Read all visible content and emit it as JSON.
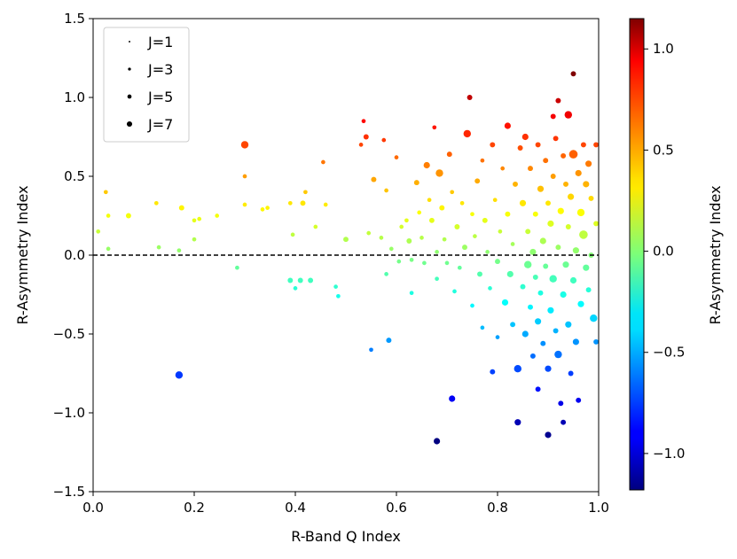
{
  "chart_data": {
    "type": "scatter",
    "title": "",
    "xlabel": "R-Band Q Index",
    "ylabel": "R-Asymmetry Index",
    "xlim": [
      0.0,
      1.0
    ],
    "ylim": [
      -1.5,
      1.5
    ],
    "xticks": [
      "0.0",
      "0.2",
      "0.4",
      "0.6",
      "0.8",
      "1.0"
    ],
    "yticks": [
      "1.5",
      "1.0",
      "0.5",
      "0.0",
      "-0.5",
      "-1.0",
      "-1.5"
    ],
    "reference_line": {
      "y": 0.0,
      "style": "dashed",
      "color": "#000000"
    },
    "colorbar": {
      "label": "R-Asymmetry Index",
      "range": [
        -1.18,
        1.15
      ],
      "ticks": [
        "1.0",
        "0.5",
        "0.0",
        "-0.5",
        "-1.0"
      ],
      "colormap": "jet"
    },
    "legend": {
      "position": "top-left",
      "entries": [
        {
          "label": "J=1",
          "j": 1
        },
        {
          "label": "J=3",
          "j": 3
        },
        {
          "label": "J=5",
          "j": 5
        },
        {
          "label": "J=7",
          "j": 7
        }
      ]
    },
    "points": [
      {
        "x": 0.01,
        "y": 0.15,
        "j": 2
      },
      {
        "x": 0.025,
        "y": 0.4,
        "j": 2
      },
      {
        "x": 0.03,
        "y": 0.25,
        "j": 2
      },
      {
        "x": 0.03,
        "y": 0.04,
        "j": 2
      },
      {
        "x": 0.07,
        "y": 0.25,
        "j": 3
      },
      {
        "x": 0.125,
        "y": 0.33,
        "j": 2
      },
      {
        "x": 0.13,
        "y": 0.05,
        "j": 2
      },
      {
        "x": 0.17,
        "y": 0.03,
        "j": 2
      },
      {
        "x": 0.17,
        "y": -0.76,
        "j": 5
      },
      {
        "x": 0.175,
        "y": 0.3,
        "j": 3
      },
      {
        "x": 0.2,
        "y": 0.22,
        "j": 2
      },
      {
        "x": 0.2,
        "y": 0.1,
        "j": 2
      },
      {
        "x": 0.21,
        "y": 0.23,
        "j": 2
      },
      {
        "x": 0.245,
        "y": 0.25,
        "j": 2
      },
      {
        "x": 0.285,
        "y": -0.08,
        "j": 2
      },
      {
        "x": 0.3,
        "y": 0.7,
        "j": 5
      },
      {
        "x": 0.3,
        "y": 0.5,
        "j": 2
      },
      {
        "x": 0.3,
        "y": 0.32,
        "j": 2
      },
      {
        "x": 0.335,
        "y": 0.29,
        "j": 2
      },
      {
        "x": 0.345,
        "y": 0.3,
        "j": 2
      },
      {
        "x": 0.39,
        "y": 0.33,
        "j": 2
      },
      {
        "x": 0.39,
        "y": -0.16,
        "j": 3
      },
      {
        "x": 0.395,
        "y": 0.13,
        "j": 2
      },
      {
        "x": 0.4,
        "y": -0.21,
        "j": 2
      },
      {
        "x": 0.41,
        "y": -0.16,
        "j": 3
      },
      {
        "x": 0.415,
        "y": 0.33,
        "j": 3
      },
      {
        "x": 0.42,
        "y": 0.4,
        "j": 2
      },
      {
        "x": 0.43,
        "y": -0.16,
        "j": 3
      },
      {
        "x": 0.44,
        "y": 0.18,
        "j": 2
      },
      {
        "x": 0.455,
        "y": 0.59,
        "j": 2
      },
      {
        "x": 0.46,
        "y": 0.32,
        "j": 2
      },
      {
        "x": 0.48,
        "y": -0.2,
        "j": 2
      },
      {
        "x": 0.485,
        "y": -0.26,
        "j": 2
      },
      {
        "x": 0.5,
        "y": 0.1,
        "j": 3
      },
      {
        "x": 0.53,
        "y": 0.7,
        "j": 2
      },
      {
        "x": 0.535,
        "y": 0.85,
        "j": 2
      },
      {
        "x": 0.54,
        "y": 0.75,
        "j": 3
      },
      {
        "x": 0.545,
        "y": 0.14,
        "j": 2
      },
      {
        "x": 0.55,
        "y": -0.6,
        "j": 2
      },
      {
        "x": 0.555,
        "y": 0.48,
        "j": 3
      },
      {
        "x": 0.57,
        "y": 0.11,
        "j": 2
      },
      {
        "x": 0.575,
        "y": 0.73,
        "j": 2
      },
      {
        "x": 0.58,
        "y": 0.41,
        "j": 2
      },
      {
        "x": 0.58,
        "y": -0.12,
        "j": 2
      },
      {
        "x": 0.585,
        "y": -0.54,
        "j": 3
      },
      {
        "x": 0.59,
        "y": 0.04,
        "j": 2
      },
      {
        "x": 0.6,
        "y": 0.62,
        "j": 2
      },
      {
        "x": 0.605,
        "y": -0.04,
        "j": 2
      },
      {
        "x": 0.61,
        "y": 0.18,
        "j": 2
      },
      {
        "x": 0.62,
        "y": 0.22,
        "j": 2
      },
      {
        "x": 0.625,
        "y": 0.09,
        "j": 3
      },
      {
        "x": 0.63,
        "y": -0.03,
        "j": 2
      },
      {
        "x": 0.63,
        "y": -0.24,
        "j": 2
      },
      {
        "x": 0.64,
        "y": 0.46,
        "j": 3
      },
      {
        "x": 0.645,
        "y": 0.27,
        "j": 2
      },
      {
        "x": 0.65,
        "y": 0.11,
        "j": 2
      },
      {
        "x": 0.655,
        "y": -0.05,
        "j": 2
      },
      {
        "x": 0.66,
        "y": 0.57,
        "j": 4
      },
      {
        "x": 0.665,
        "y": 0.35,
        "j": 2
      },
      {
        "x": 0.67,
        "y": 0.22,
        "j": 3
      },
      {
        "x": 0.675,
        "y": 0.81,
        "j": 2
      },
      {
        "x": 0.68,
        "y": 0.02,
        "j": 2
      },
      {
        "x": 0.68,
        "y": -0.15,
        "j": 2
      },
      {
        "x": 0.68,
        "y": -1.18,
        "j": 4
      },
      {
        "x": 0.685,
        "y": 0.52,
        "j": 5
      },
      {
        "x": 0.69,
        "y": 0.3,
        "j": 3
      },
      {
        "x": 0.695,
        "y": 0.1,
        "j": 2
      },
      {
        "x": 0.7,
        "y": -0.05,
        "j": 2
      },
      {
        "x": 0.705,
        "y": 0.64,
        "j": 3
      },
      {
        "x": 0.71,
        "y": -0.91,
        "j": 4
      },
      {
        "x": 0.71,
        "y": 0.4,
        "j": 2
      },
      {
        "x": 0.715,
        "y": -0.23,
        "j": 2
      },
      {
        "x": 0.72,
        "y": 0.18,
        "j": 3
      },
      {
        "x": 0.725,
        "y": -0.08,
        "j": 2
      },
      {
        "x": 0.73,
        "y": 0.33,
        "j": 2
      },
      {
        "x": 0.735,
        "y": 0.05,
        "j": 3
      },
      {
        "x": 0.74,
        "y": 0.77,
        "j": 5
      },
      {
        "x": 0.745,
        "y": 1.0,
        "j": 3
      },
      {
        "x": 0.75,
        "y": 0.26,
        "j": 2
      },
      {
        "x": 0.75,
        "y": -0.32,
        "j": 2
      },
      {
        "x": 0.755,
        "y": 0.12,
        "j": 2
      },
      {
        "x": 0.76,
        "y": 0.47,
        "j": 3
      },
      {
        "x": 0.765,
        "y": -0.12,
        "j": 3
      },
      {
        "x": 0.77,
        "y": 0.6,
        "j": 2
      },
      {
        "x": 0.77,
        "y": -0.46,
        "j": 2
      },
      {
        "x": 0.775,
        "y": 0.22,
        "j": 3
      },
      {
        "x": 0.78,
        "y": 0.02,
        "j": 2
      },
      {
        "x": 0.785,
        "y": -0.21,
        "j": 2
      },
      {
        "x": 0.79,
        "y": 0.7,
        "j": 3
      },
      {
        "x": 0.79,
        "y": -0.74,
        "j": 3
      },
      {
        "x": 0.795,
        "y": 0.35,
        "j": 2
      },
      {
        "x": 0.8,
        "y": -0.04,
        "j": 3
      },
      {
        "x": 0.8,
        "y": -0.52,
        "j": 2
      },
      {
        "x": 0.805,
        "y": 0.15,
        "j": 2
      },
      {
        "x": 0.81,
        "y": 0.55,
        "j": 2
      },
      {
        "x": 0.815,
        "y": -0.3,
        "j": 4
      },
      {
        "x": 0.82,
        "y": 0.82,
        "j": 4
      },
      {
        "x": 0.82,
        "y": 0.26,
        "j": 3
      },
      {
        "x": 0.825,
        "y": -0.12,
        "j": 4
      },
      {
        "x": 0.83,
        "y": 0.07,
        "j": 2
      },
      {
        "x": 0.83,
        "y": -0.44,
        "j": 3
      },
      {
        "x": 0.835,
        "y": 0.45,
        "j": 3
      },
      {
        "x": 0.84,
        "y": -0.72,
        "j": 5
      },
      {
        "x": 0.84,
        "y": -1.06,
        "j": 4
      },
      {
        "x": 0.845,
        "y": 0.68,
        "j": 3
      },
      {
        "x": 0.85,
        "y": 0.33,
        "j": 4
      },
      {
        "x": 0.85,
        "y": -0.2,
        "j": 3
      },
      {
        "x": 0.855,
        "y": 0.75,
        "j": 4
      },
      {
        "x": 0.855,
        "y": -0.5,
        "j": 4
      },
      {
        "x": 0.86,
        "y": 0.15,
        "j": 3
      },
      {
        "x": 0.86,
        "y": -0.06,
        "j": 5
      },
      {
        "x": 0.865,
        "y": 0.55,
        "j": 3
      },
      {
        "x": 0.865,
        "y": -0.33,
        "j": 3
      },
      {
        "x": 0.87,
        "y": 0.02,
        "j": 4
      },
      {
        "x": 0.87,
        "y": -0.64,
        "j": 3
      },
      {
        "x": 0.875,
        "y": 0.26,
        "j": 3
      },
      {
        "x": 0.875,
        "y": -0.14,
        "j": 3
      },
      {
        "x": 0.88,
        "y": 0.7,
        "j": 3
      },
      {
        "x": 0.88,
        "y": -0.42,
        "j": 4
      },
      {
        "x": 0.88,
        "y": -0.85,
        "j": 3
      },
      {
        "x": 0.885,
        "y": 0.42,
        "j": 4
      },
      {
        "x": 0.885,
        "y": -0.24,
        "j": 3
      },
      {
        "x": 0.89,
        "y": 0.09,
        "j": 4
      },
      {
        "x": 0.89,
        "y": -0.56,
        "j": 3
      },
      {
        "x": 0.895,
        "y": 0.6,
        "j": 3
      },
      {
        "x": 0.895,
        "y": -0.07,
        "j": 3
      },
      {
        "x": 0.9,
        "y": 0.33,
        "j": 3
      },
      {
        "x": 0.9,
        "y": -0.72,
        "j": 4
      },
      {
        "x": 0.9,
        "y": -1.14,
        "j": 4
      },
      {
        "x": 0.905,
        "y": 0.2,
        "j": 4
      },
      {
        "x": 0.905,
        "y": -0.35,
        "j": 4
      },
      {
        "x": 0.91,
        "y": 0.88,
        "j": 3
      },
      {
        "x": 0.91,
        "y": 0.5,
        "j": 3
      },
      {
        "x": 0.91,
        "y": -0.15,
        "j": 5
      },
      {
        "x": 0.915,
        "y": 0.74,
        "j": 3
      },
      {
        "x": 0.915,
        "y": -0.48,
        "j": 3
      },
      {
        "x": 0.92,
        "y": 0.98,
        "j": 3
      },
      {
        "x": 0.92,
        "y": 0.05,
        "j": 3
      },
      {
        "x": 0.92,
        "y": -0.63,
        "j": 5
      },
      {
        "x": 0.925,
        "y": 0.28,
        "j": 4
      },
      {
        "x": 0.925,
        "y": -0.94,
        "j": 3
      },
      {
        "x": 0.93,
        "y": 0.63,
        "j": 3
      },
      {
        "x": 0.93,
        "y": -0.25,
        "j": 4
      },
      {
        "x": 0.93,
        "y": -1.06,
        "j": 3
      },
      {
        "x": 0.935,
        "y": 0.45,
        "j": 3
      },
      {
        "x": 0.935,
        "y": -0.06,
        "j": 4
      },
      {
        "x": 0.94,
        "y": 0.89,
        "j": 5
      },
      {
        "x": 0.94,
        "y": 0.18,
        "j": 3
      },
      {
        "x": 0.94,
        "y": -0.44,
        "j": 4
      },
      {
        "x": 0.945,
        "y": 0.37,
        "j": 4
      },
      {
        "x": 0.945,
        "y": -0.75,
        "j": 3
      },
      {
        "x": 0.95,
        "y": 1.15,
        "j": 3
      },
      {
        "x": 0.95,
        "y": 0.64,
        "j": 6
      },
      {
        "x": 0.95,
        "y": -0.16,
        "j": 4
      },
      {
        "x": 0.955,
        "y": 0.03,
        "j": 4
      },
      {
        "x": 0.955,
        "y": -0.55,
        "j": 4
      },
      {
        "x": 0.96,
        "y": 0.52,
        "j": 4
      },
      {
        "x": 0.96,
        "y": -0.92,
        "j": 3
      },
      {
        "x": 0.965,
        "y": 0.27,
        "j": 5
      },
      {
        "x": 0.965,
        "y": -0.31,
        "j": 4
      },
      {
        "x": 0.97,
        "y": 0.7,
        "j": 3
      },
      {
        "x": 0.97,
        "y": 0.13,
        "j": 6
      },
      {
        "x": 0.975,
        "y": 0.45,
        "j": 4
      },
      {
        "x": 0.975,
        "y": -0.08,
        "j": 4
      },
      {
        "x": 0.98,
        "y": 0.58,
        "j": 4
      },
      {
        "x": 0.98,
        "y": -0.22,
        "j": 3
      },
      {
        "x": 0.985,
        "y": 0.36,
        "j": 3
      },
      {
        "x": 0.985,
        "y": 0.0,
        "j": 3
      },
      {
        "x": 0.99,
        "y": -0.4,
        "j": 5
      },
      {
        "x": 0.995,
        "y": 0.7,
        "j": 3
      },
      {
        "x": 0.995,
        "y": 0.2,
        "j": 3
      },
      {
        "x": 0.995,
        "y": -0.55,
        "j": 3
      }
    ]
  }
}
